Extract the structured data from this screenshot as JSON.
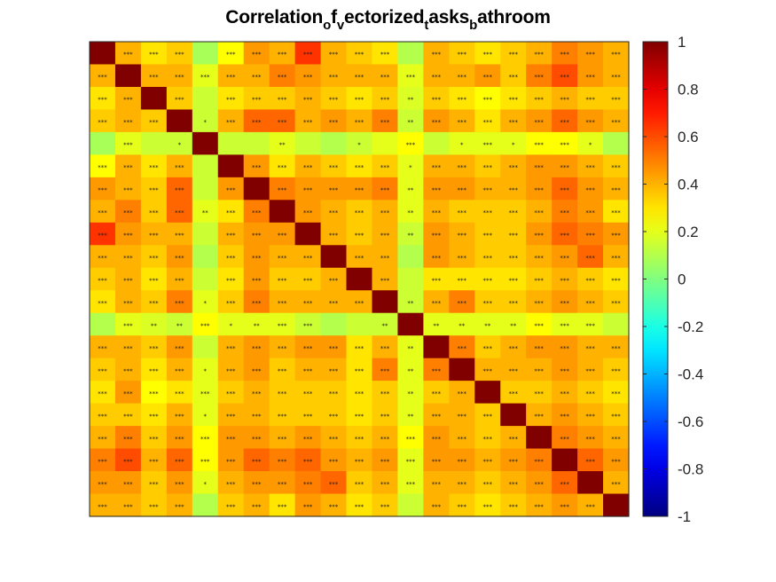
{
  "chart_data": {
    "type": "heatmap",
    "title_parts": [
      "Correlation",
      "o",
      "f",
      "v",
      "ectorized",
      "t",
      "asks",
      "b",
      "athroom"
    ],
    "title": "Correlation_of_vectorized_tasks_bathroom",
    "n": 21,
    "colormap": "jet",
    "clim": [
      -1,
      1
    ],
    "colorbar_ticks": [
      "1",
      "0.8",
      "0.6",
      "0.4",
      "0.2",
      "0",
      "-0.2",
      "-0.4",
      "-0.6",
      "-0.8",
      "-1"
    ],
    "colorbar_values": [
      1,
      0.8,
      0.6,
      0.4,
      0.2,
      0,
      -0.2,
      -0.4,
      -0.6,
      -0.8,
      -1
    ],
    "matrix": [
      [
        1.0,
        0.4,
        0.3,
        0.35,
        0.08,
        0.25,
        0.45,
        0.4,
        0.65,
        0.4,
        0.35,
        0.3,
        0.1,
        0.4,
        0.35,
        0.3,
        0.35,
        0.4,
        0.5,
        0.45,
        0.4
      ],
      [
        0.4,
        1.0,
        0.4,
        0.4,
        0.2,
        0.4,
        0.4,
        0.5,
        0.45,
        0.4,
        0.4,
        0.4,
        0.2,
        0.4,
        0.4,
        0.45,
        0.35,
        0.5,
        0.6,
        0.45,
        0.4
      ],
      [
        0.3,
        0.4,
        1.0,
        0.35,
        0.15,
        0.3,
        0.35,
        0.35,
        0.4,
        0.35,
        0.3,
        0.35,
        0.18,
        0.35,
        0.3,
        0.25,
        0.3,
        0.35,
        0.4,
        0.35,
        0.35
      ],
      [
        0.35,
        0.4,
        0.35,
        1.0,
        0.15,
        0.4,
        0.55,
        0.55,
        0.4,
        0.45,
        0.4,
        0.5,
        0.15,
        0.45,
        0.4,
        0.3,
        0.4,
        0.45,
        0.55,
        0.45,
        0.4
      ],
      [
        0.08,
        0.2,
        0.15,
        0.15,
        1.0,
        0.15,
        0.15,
        0.2,
        0.15,
        0.1,
        0.15,
        0.2,
        0.25,
        0.15,
        0.2,
        0.2,
        0.2,
        0.25,
        0.25,
        0.2,
        0.1
      ],
      [
        0.25,
        0.4,
        0.3,
        0.4,
        0.15,
        1.0,
        0.45,
        0.3,
        0.4,
        0.35,
        0.3,
        0.35,
        0.2,
        0.4,
        0.4,
        0.35,
        0.4,
        0.45,
        0.45,
        0.4,
        0.35
      ],
      [
        0.45,
        0.4,
        0.35,
        0.55,
        0.15,
        0.45,
        1.0,
        0.5,
        0.45,
        0.45,
        0.45,
        0.5,
        0.2,
        0.45,
        0.45,
        0.4,
        0.4,
        0.45,
        0.55,
        0.45,
        0.4
      ],
      [
        0.4,
        0.5,
        0.35,
        0.55,
        0.2,
        0.3,
        0.5,
        1.0,
        0.45,
        0.4,
        0.35,
        0.4,
        0.2,
        0.4,
        0.35,
        0.35,
        0.35,
        0.4,
        0.5,
        0.45,
        0.3
      ],
      [
        0.65,
        0.45,
        0.4,
        0.4,
        0.15,
        0.4,
        0.45,
        0.45,
        1.0,
        0.4,
        0.35,
        0.4,
        0.15,
        0.45,
        0.4,
        0.35,
        0.35,
        0.45,
        0.55,
        0.5,
        0.45
      ],
      [
        0.4,
        0.4,
        0.35,
        0.45,
        0.1,
        0.35,
        0.45,
        0.4,
        0.4,
        1.0,
        0.4,
        0.4,
        0.1,
        0.45,
        0.4,
        0.35,
        0.35,
        0.4,
        0.45,
        0.55,
        0.4
      ],
      [
        0.35,
        0.4,
        0.3,
        0.4,
        0.15,
        0.3,
        0.45,
        0.35,
        0.35,
        0.4,
        1.0,
        0.4,
        0.15,
        0.3,
        0.3,
        0.3,
        0.3,
        0.35,
        0.4,
        0.35,
        0.3
      ],
      [
        0.3,
        0.4,
        0.35,
        0.5,
        0.2,
        0.35,
        0.5,
        0.4,
        0.4,
        0.4,
        0.4,
        1.0,
        0.15,
        0.4,
        0.5,
        0.35,
        0.35,
        0.4,
        0.45,
        0.4,
        0.35
      ],
      [
        0.1,
        0.2,
        0.18,
        0.15,
        0.25,
        0.2,
        0.2,
        0.2,
        0.15,
        0.1,
        0.15,
        0.15,
        1.0,
        0.2,
        0.2,
        0.2,
        0.2,
        0.25,
        0.2,
        0.2,
        0.15
      ],
      [
        0.4,
        0.4,
        0.35,
        0.45,
        0.15,
        0.4,
        0.45,
        0.4,
        0.45,
        0.45,
        0.3,
        0.4,
        0.2,
        1.0,
        0.5,
        0.35,
        0.4,
        0.45,
        0.45,
        0.4,
        0.4
      ],
      [
        0.35,
        0.4,
        0.3,
        0.4,
        0.2,
        0.4,
        0.45,
        0.35,
        0.4,
        0.4,
        0.3,
        0.5,
        0.2,
        0.5,
        1.0,
        0.4,
        0.4,
        0.4,
        0.45,
        0.4,
        0.35
      ],
      [
        0.3,
        0.45,
        0.25,
        0.3,
        0.2,
        0.35,
        0.4,
        0.35,
        0.35,
        0.35,
        0.3,
        0.35,
        0.2,
        0.35,
        0.4,
        1.0,
        0.35,
        0.35,
        0.4,
        0.35,
        0.3
      ],
      [
        0.35,
        0.35,
        0.3,
        0.4,
        0.2,
        0.4,
        0.4,
        0.35,
        0.35,
        0.35,
        0.3,
        0.35,
        0.2,
        0.4,
        0.4,
        0.35,
        1.0,
        0.4,
        0.45,
        0.4,
        0.35
      ],
      [
        0.4,
        0.5,
        0.35,
        0.45,
        0.25,
        0.45,
        0.45,
        0.4,
        0.45,
        0.4,
        0.35,
        0.4,
        0.25,
        0.45,
        0.4,
        0.35,
        0.4,
        1.0,
        0.5,
        0.45,
        0.4
      ],
      [
        0.5,
        0.6,
        0.4,
        0.55,
        0.25,
        0.45,
        0.55,
        0.5,
        0.55,
        0.45,
        0.4,
        0.45,
        0.2,
        0.45,
        0.45,
        0.4,
        0.45,
        0.5,
        1.0,
        0.55,
        0.45
      ],
      [
        0.45,
        0.45,
        0.35,
        0.45,
        0.2,
        0.4,
        0.45,
        0.45,
        0.5,
        0.55,
        0.35,
        0.4,
        0.2,
        0.4,
        0.4,
        0.35,
        0.4,
        0.45,
        0.55,
        1.0,
        0.4
      ],
      [
        0.4,
        0.4,
        0.35,
        0.4,
        0.1,
        0.35,
        0.4,
        0.3,
        0.45,
        0.4,
        0.3,
        0.35,
        0.15,
        0.4,
        0.35,
        0.3,
        0.35,
        0.4,
        0.45,
        0.4,
        1.0
      ]
    ],
    "significance": [
      [
        "",
        "***",
        "***",
        "***",
        "",
        "***",
        "***",
        "***",
        "***",
        "***",
        "***",
        "***",
        "",
        "***",
        "***",
        "***",
        "***",
        "***",
        "***",
        "***",
        "***"
      ],
      [
        "***",
        "",
        "***",
        "***",
        "***",
        "***",
        "***",
        "***",
        "***",
        "***",
        "***",
        "***",
        "***",
        "***",
        "***",
        "***",
        "***",
        "***",
        "***",
        "***",
        "***"
      ],
      [
        "***",
        "***",
        "",
        "***",
        "",
        "***",
        "***",
        "***",
        "***",
        "***",
        "***",
        "***",
        "**",
        "***",
        "***",
        "***",
        "***",
        "***",
        "***",
        "***",
        "***"
      ],
      [
        "***",
        "***",
        "***",
        "",
        "*",
        "***",
        "***",
        "***",
        "***",
        "***",
        "***",
        "***",
        "**",
        "***",
        "***",
        "***",
        "***",
        "***",
        "***",
        "***",
        "***"
      ],
      [
        "",
        "***",
        "",
        "*",
        "",
        "",
        "",
        "**",
        "",
        "",
        "*",
        "",
        "***",
        "",
        "*",
        "***",
        "*",
        "***",
        "***",
        "*",
        ""
      ],
      [
        "***",
        "***",
        "***",
        "***",
        "",
        "",
        "***",
        "***",
        "***",
        "***",
        "***",
        "***",
        "*",
        "***",
        "***",
        "***",
        "***",
        "***",
        "***",
        "***",
        "***"
      ],
      [
        "***",
        "***",
        "***",
        "***",
        "",
        "***",
        "",
        "***",
        "***",
        "***",
        "***",
        "***",
        "**",
        "***",
        "***",
        "***",
        "***",
        "***",
        "***",
        "***",
        "***"
      ],
      [
        "***",
        "***",
        "***",
        "***",
        "**",
        "***",
        "***",
        "",
        "***",
        "***",
        "***",
        "***",
        "**",
        "***",
        "***",
        "***",
        "***",
        "***",
        "***",
        "***",
        "***"
      ],
      [
        "***",
        "***",
        "***",
        "***",
        "",
        "***",
        "***",
        "***",
        "",
        "***",
        "***",
        "***",
        "**",
        "***",
        "***",
        "***",
        "***",
        "***",
        "***",
        "***",
        "***"
      ],
      [
        "***",
        "***",
        "***",
        "***",
        "",
        "***",
        "***",
        "***",
        "***",
        "",
        "***",
        "***",
        "",
        "***",
        "***",
        "***",
        "***",
        "***",
        "***",
        "***",
        "***"
      ],
      [
        "***",
        "***",
        "***",
        "***",
        "",
        "***",
        "***",
        "***",
        "***",
        "***",
        "",
        "***",
        "",
        "***",
        "***",
        "***",
        "***",
        "***",
        "***",
        "***",
        "***"
      ],
      [
        "***",
        "***",
        "***",
        "***",
        "*",
        "***",
        "***",
        "***",
        "***",
        "***",
        "***",
        "",
        "**",
        "***",
        "***",
        "***",
        "***",
        "***",
        "***",
        "***",
        "***"
      ],
      [
        "",
        "***",
        "**",
        "**",
        "***",
        "*",
        "**",
        "***",
        "***",
        "",
        "",
        "**",
        "",
        "**",
        "**",
        "**",
        "**",
        "***",
        "***",
        "***",
        ""
      ],
      [
        "***",
        "***",
        "***",
        "***",
        "",
        "***",
        "***",
        "***",
        "***",
        "***",
        "***",
        "***",
        "**",
        "",
        "***",
        "***",
        "***",
        "***",
        "***",
        "***",
        "***"
      ],
      [
        "***",
        "***",
        "***",
        "***",
        "*",
        "***",
        "***",
        "***",
        "***",
        "***",
        "***",
        "***",
        "**",
        "***",
        "",
        "***",
        "***",
        "***",
        "***",
        "***",
        "***"
      ],
      [
        "***",
        "***",
        "***",
        "***",
        "***",
        "***",
        "***",
        "***",
        "***",
        "***",
        "***",
        "***",
        "**",
        "***",
        "***",
        "",
        "***",
        "***",
        "***",
        "***",
        "***"
      ],
      [
        "***",
        "***",
        "***",
        "***",
        "*",
        "***",
        "***",
        "***",
        "***",
        "***",
        "***",
        "***",
        "**",
        "***",
        "***",
        "***",
        "",
        "***",
        "***",
        "***",
        "***"
      ],
      [
        "***",
        "***",
        "***",
        "***",
        "***",
        "***",
        "***",
        "***",
        "***",
        "***",
        "***",
        "***",
        "***",
        "***",
        "***",
        "***",
        "***",
        "",
        "***",
        "***",
        "***"
      ],
      [
        "***",
        "***",
        "***",
        "***",
        "***",
        "***",
        "***",
        "***",
        "***",
        "***",
        "***",
        "***",
        "***",
        "***",
        "***",
        "***",
        "***",
        "***",
        "",
        "***",
        "***"
      ],
      [
        "***",
        "***",
        "***",
        "***",
        "*",
        "***",
        "***",
        "***",
        "***",
        "***",
        "***",
        "***",
        "***",
        "***",
        "***",
        "***",
        "***",
        "***",
        "***",
        "",
        "***"
      ],
      [
        "***",
        "***",
        "***",
        "***",
        "",
        "***",
        "***",
        "***",
        "***",
        "***",
        "***",
        "***",
        "",
        "***",
        "***",
        "***",
        "***",
        "***",
        "***",
        "***",
        ""
      ]
    ]
  }
}
